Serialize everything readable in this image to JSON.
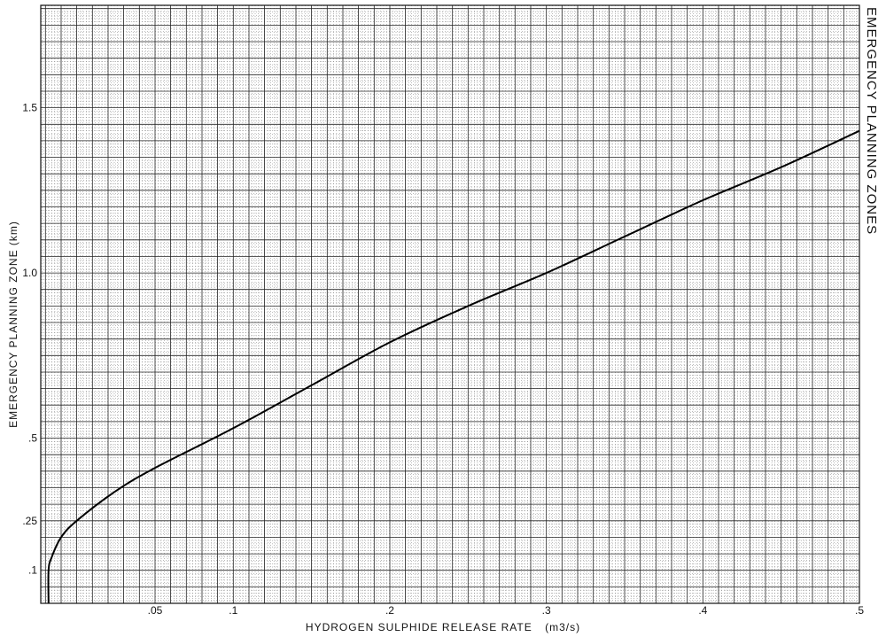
{
  "chart_data": {
    "type": "line",
    "title": "EMERGENCY PLANNING ZONES",
    "xlabel": "HYDROGEN SULPHIDE RELEASE RATE",
    "xlabel_unit": "(m3/s)",
    "ylabel": "EMERGENCY PLANNING ZONE (km)",
    "xlim": [
      -0.023,
      0.5
    ],
    "ylim": [
      0,
      1.81
    ],
    "x_ticks": [
      {
        "value": 0.05,
        "label": ".05"
      },
      {
        "value": 0.1,
        "label": ".1"
      },
      {
        "value": 0.2,
        "label": ".2"
      },
      {
        "value": 0.3,
        "label": ".3"
      },
      {
        "value": 0.4,
        "label": ".4"
      },
      {
        "value": 0.5,
        "label": ".5"
      }
    ],
    "y_ticks": [
      {
        "value": 0.1,
        "label": ".1"
      },
      {
        "value": 0.25,
        "label": ".25"
      },
      {
        "value": 0.5,
        "label": ".5"
      },
      {
        "value": 1.0,
        "label": "1.0"
      },
      {
        "value": 1.5,
        "label": "1.5"
      }
    ],
    "grid": true,
    "series": [
      {
        "x": [
          -0.018,
          -0.018,
          -0.016,
          -0.01,
          0.0,
          0.025,
          0.05,
          0.1,
          0.15,
          0.2,
          0.25,
          0.3,
          0.35,
          0.4,
          0.45,
          0.5
        ],
        "y": [
          0.0,
          0.1,
          0.14,
          0.2,
          0.25,
          0.34,
          0.41,
          0.53,
          0.66,
          0.79,
          0.9,
          1.0,
          1.11,
          1.22,
          1.32,
          1.43
        ]
      }
    ]
  }
}
